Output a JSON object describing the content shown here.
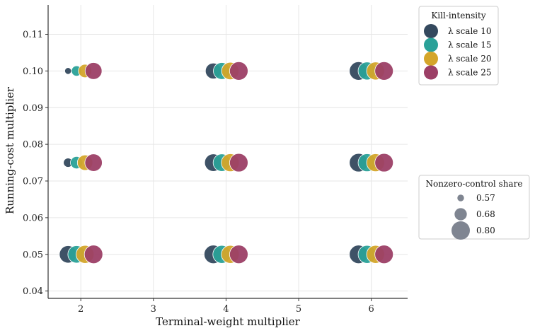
{
  "chart_data": {
    "type": "scatter",
    "title": "",
    "xlabel": "Terminal-weight multiplier",
    "ylabel": "Running-cost multiplier",
    "xlim": [
      1.55,
      6.5
    ],
    "ylim": [
      0.038,
      0.118
    ],
    "xticks": [
      "2",
      "3",
      "4",
      "5",
      "6"
    ],
    "yticks": [
      "0.04",
      "0.05",
      "0.06",
      "0.07",
      "0.08",
      "0.09",
      "0.10",
      "0.11"
    ],
    "grid": true,
    "color_legend": {
      "title": "Kill-intensity",
      "placement": "top-right outside",
      "entries": [
        {
          "label": "λ scale 10",
          "color": "#34495e"
        },
        {
          "label": "λ scale 15",
          "color": "#2aa198"
        },
        {
          "label": "λ scale 20",
          "color": "#d4a52a"
        },
        {
          "label": "λ scale 25",
          "color": "#9c3f66"
        }
      ]
    },
    "size_legend": {
      "title": "Nonzero-control share",
      "placement": "right outside",
      "entries": [
        {
          "label": "0.57",
          "value": 0.57
        },
        {
          "label": "0.68",
          "value": 0.68
        },
        {
          "label": "0.80",
          "value": 0.8
        }
      ]
    },
    "series": [
      {
        "name": "λ scale 10",
        "color": "#34495e",
        "points": [
          {
            "x": 2,
            "y": 0.05,
            "share": 0.78
          },
          {
            "x": 2,
            "y": 0.075,
            "share": 0.62
          },
          {
            "x": 2,
            "y": 0.1,
            "share": 0.57
          },
          {
            "x": 4,
            "y": 0.05,
            "share": 0.8
          },
          {
            "x": 4,
            "y": 0.075,
            "share": 0.78
          },
          {
            "x": 4,
            "y": 0.1,
            "share": 0.75
          },
          {
            "x": 6,
            "y": 0.05,
            "share": 0.8
          },
          {
            "x": 6,
            "y": 0.075,
            "share": 0.8
          },
          {
            "x": 6,
            "y": 0.1,
            "share": 0.8
          }
        ]
      },
      {
        "name": "λ scale 15",
        "color": "#2aa198",
        "points": [
          {
            "x": 2,
            "y": 0.05,
            "share": 0.78
          },
          {
            "x": 2,
            "y": 0.075,
            "share": 0.68
          },
          {
            "x": 2,
            "y": 0.1,
            "share": 0.64
          },
          {
            "x": 4,
            "y": 0.05,
            "share": 0.79
          },
          {
            "x": 4,
            "y": 0.075,
            "share": 0.78
          },
          {
            "x": 4,
            "y": 0.1,
            "share": 0.77
          },
          {
            "x": 6,
            "y": 0.05,
            "share": 0.79
          },
          {
            "x": 6,
            "y": 0.075,
            "share": 0.79
          },
          {
            "x": 6,
            "y": 0.1,
            "share": 0.79
          }
        ]
      },
      {
        "name": "λ scale 20",
        "color": "#d4a52a",
        "points": [
          {
            "x": 2,
            "y": 0.05,
            "share": 0.79
          },
          {
            "x": 2,
            "y": 0.075,
            "share": 0.74
          },
          {
            "x": 2,
            "y": 0.1,
            "share": 0.7
          },
          {
            "x": 4,
            "y": 0.05,
            "share": 0.79
          },
          {
            "x": 4,
            "y": 0.075,
            "share": 0.79
          },
          {
            "x": 4,
            "y": 0.1,
            "share": 0.78
          },
          {
            "x": 6,
            "y": 0.05,
            "share": 0.79
          },
          {
            "x": 6,
            "y": 0.075,
            "share": 0.79
          },
          {
            "x": 6,
            "y": 0.1,
            "share": 0.79
          }
        ]
      },
      {
        "name": "λ scale 25",
        "color": "#9c3f66",
        "points": [
          {
            "x": 2,
            "y": 0.05,
            "share": 0.8
          },
          {
            "x": 2,
            "y": 0.075,
            "share": 0.78
          },
          {
            "x": 2,
            "y": 0.1,
            "share": 0.77
          },
          {
            "x": 4,
            "y": 0.05,
            "share": 0.8
          },
          {
            "x": 4,
            "y": 0.075,
            "share": 0.8
          },
          {
            "x": 4,
            "y": 0.1,
            "share": 0.8
          },
          {
            "x": 6,
            "y": 0.05,
            "share": 0.8
          },
          {
            "x": 6,
            "y": 0.075,
            "share": 0.8
          },
          {
            "x": 6,
            "y": 0.1,
            "share": 0.8
          }
        ]
      }
    ]
  }
}
